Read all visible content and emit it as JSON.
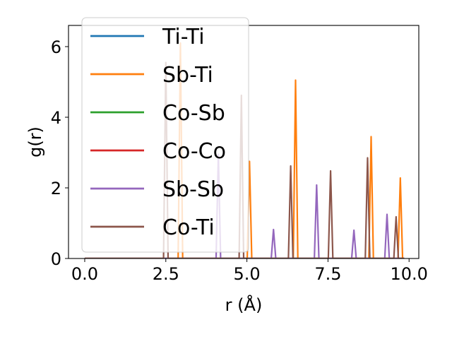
{
  "chart_data": {
    "type": "line",
    "title": "",
    "xlabel": "r (Å)",
    "ylabel": "g(r)",
    "xlim": [
      -0.5,
      10.3
    ],
    "ylim": [
      0,
      6.6
    ],
    "xticks": [
      0.0,
      2.5,
      5.0,
      7.5,
      10.0
    ],
    "xtick_labels": [
      "0.0",
      "2.5",
      "5.0",
      "7.5",
      "10.0"
    ],
    "yticks": [
      0,
      2,
      4,
      6
    ],
    "ytick_labels": [
      "0",
      "2",
      "4",
      "6"
    ],
    "grid": false,
    "legend_position": "upper-left",
    "peak_halfwidth": 0.07,
    "series": [
      {
        "name": "Ti-Ti",
        "color": "#1f77b4",
        "peaks": []
      },
      {
        "name": "Sb-Ti",
        "color": "#ff7f0e",
        "peaks": [
          [
            2.95,
            6.1
          ],
          [
            5.08,
            2.75
          ],
          [
            6.5,
            5.05
          ],
          [
            8.83,
            3.45
          ],
          [
            9.73,
            2.28
          ]
        ]
      },
      {
        "name": "Co-Sb",
        "color": "#2ca02c",
        "peaks": []
      },
      {
        "name": "Co-Co",
        "color": "#d62728",
        "peaks": []
      },
      {
        "name": "Sb-Sb",
        "color": "#9467bd",
        "peaks": [
          [
            4.12,
            2.95
          ],
          [
            5.82,
            0.82
          ],
          [
            7.15,
            2.08
          ],
          [
            8.3,
            0.8
          ],
          [
            9.32,
            1.25
          ]
        ]
      },
      {
        "name": "Co-Ti",
        "color": "#8c564b",
        "peaks": [
          [
            2.5,
            5.55
          ],
          [
            4.83,
            4.62
          ],
          [
            6.35,
            2.62
          ],
          [
            7.58,
            2.48
          ],
          [
            8.72,
            2.85
          ],
          [
            9.6,
            1.18
          ]
        ]
      }
    ]
  }
}
